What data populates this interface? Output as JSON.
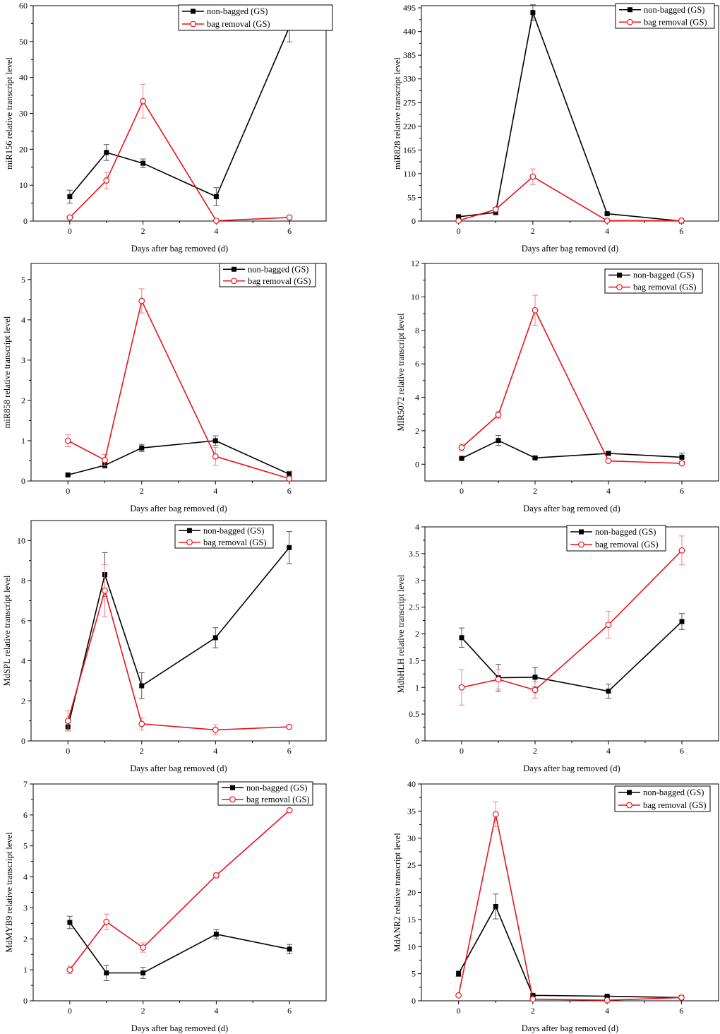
{
  "figure": {
    "xlabel": "Days after bag removed (d)"
  },
  "series_names": {
    "a": "non-bagged (GS)",
    "b": "bag removal (GS)"
  },
  "colors": {
    "a": "#000000",
    "b": "#e8141c",
    "b_error": "#f08080"
  },
  "chart_data": [
    {
      "type": "line",
      "title": "",
      "ylabel": "miR156 relative transcript level",
      "xlabel": "Days after bag removed (d)",
      "x": [
        0,
        1,
        2,
        4,
        6
      ],
      "xlim": [
        -1,
        7
      ],
      "xticks": [
        0,
        2,
        4,
        6
      ],
      "ylim": [
        0,
        60
      ],
      "yticks": [
        0,
        10,
        20,
        30,
        40,
        50,
        60
      ],
      "legend": "top-right",
      "series": [
        {
          "name": "non-bagged (GS)",
          "values": [
            6.8,
            19.1,
            16.1,
            6.8,
            54.1
          ],
          "errors": [
            1.8,
            2.2,
            1.2,
            2.5,
            4.2
          ]
        },
        {
          "name": "bag removal (GS)",
          "values": [
            1.0,
            11.3,
            33.4,
            0.1,
            1.0
          ],
          "errors": [
            0.3,
            2.3,
            4.7,
            0.1,
            0.2
          ]
        }
      ]
    },
    {
      "type": "line",
      "title": "",
      "ylabel": "miR828 relative transcript level",
      "xlabel": "Days after bag removed (d)",
      "x": [
        0,
        1,
        2,
        4,
        6
      ],
      "xlim": [
        -1,
        7
      ],
      "xticks": [
        0,
        2,
        4,
        6
      ],
      "ylim": [
        0,
        500
      ],
      "yticks": [
        0,
        55,
        110,
        165,
        220,
        275,
        330,
        385,
        440,
        495
      ],
      "legend": "top-right",
      "series": [
        {
          "name": "non-bagged (GS)",
          "values": [
            10,
            20,
            484,
            17,
            0
          ],
          "errors": [
            2,
            5,
            18,
            2,
            0.5
          ]
        },
        {
          "name": "bag removal (GS)",
          "values": [
            1,
            27,
            103,
            1,
            1
          ],
          "errors": [
            0.5,
            5,
            18,
            0.5,
            0.5
          ]
        }
      ]
    },
    {
      "type": "line",
      "title": "",
      "ylabel": "miR858 relative transcript level",
      "xlabel": "Days after bag removed (d)",
      "x": [
        0,
        1,
        2,
        4,
        6
      ],
      "xlim": [
        -1,
        7
      ],
      "xticks": [
        0,
        2,
        4,
        6
      ],
      "ylim": [
        0,
        5.4
      ],
      "yticks": [
        0,
        1,
        2,
        3,
        4,
        5
      ],
      "legend": "top-right",
      "series": [
        {
          "name": "non-bagged (GS)",
          "values": [
            0.15,
            0.39,
            0.82,
            1.0,
            0.17
          ],
          "errors": [
            0.03,
            0.07,
            0.09,
            0.12,
            0.07
          ]
        },
        {
          "name": "bag removal (GS)",
          "values": [
            1.0,
            0.52,
            4.47,
            0.61,
            0.06
          ],
          "errors": [
            0.15,
            0.14,
            0.3,
            0.22,
            0.03
          ]
        }
      ]
    },
    {
      "type": "line",
      "title": "",
      "ylabel": "MIR5072 relative transcript level",
      "xlabel": "Days after bag removed (d)",
      "x": [
        0,
        1,
        2,
        4,
        6
      ],
      "xlim": [
        -1,
        7
      ],
      "xticks": [
        0,
        2,
        4,
        6
      ],
      "ylim": [
        -1,
        12
      ],
      "yticks": [
        0,
        2,
        4,
        6,
        8,
        10,
        12
      ],
      "legend": "top-right",
      "series": [
        {
          "name": "non-bagged (GS)",
          "values": [
            0.35,
            1.42,
            0.38,
            0.65,
            0.42
          ],
          "errors": [
            0.05,
            0.3,
            0.05,
            0.1,
            0.25
          ]
        },
        {
          "name": "bag removal (GS)",
          "values": [
            1.0,
            2.95,
            9.2,
            0.2,
            0.05
          ],
          "errors": [
            0.2,
            0.2,
            0.9,
            0.1,
            0.05
          ]
        }
      ]
    },
    {
      "type": "line",
      "title": "",
      "ylabel": "MdSPL relative transcript level",
      "xlabel": "Days after bag removed (d)",
      "x": [
        0,
        1,
        2,
        4,
        6
      ],
      "xlim": [
        -1,
        7
      ],
      "xticks": [
        0,
        2,
        4,
        6
      ],
      "ylim": [
        0,
        11
      ],
      "yticks": [
        0,
        2,
        4,
        6,
        8,
        10
      ],
      "legend": "top-right",
      "series": [
        {
          "name": "non-bagged (GS)",
          "values": [
            0.7,
            8.3,
            2.75,
            5.15,
            9.65
          ],
          "errors": [
            0.2,
            1.1,
            0.65,
            0.5,
            0.8
          ]
        },
        {
          "name": "bag removal (GS)",
          "values": [
            1.0,
            7.5,
            0.85,
            0.55,
            0.7
          ],
          "errors": [
            0.5,
            1.3,
            0.3,
            0.25,
            0.05
          ]
        }
      ]
    },
    {
      "type": "line",
      "title": "",
      "ylabel": "MdbHLH relative transcript level",
      "xlabel": "Days after bag removed (d)",
      "x": [
        0,
        1,
        2,
        4,
        6
      ],
      "xlim": [
        -1,
        7
      ],
      "xticks": [
        0,
        2,
        4,
        6
      ],
      "ylim": [
        0,
        4.0
      ],
      "yticks": [
        0.0,
        0.5,
        1.0,
        1.5,
        2.0,
        2.5,
        3.0,
        3.5,
        4.0
      ],
      "legend": "top-right",
      "series": [
        {
          "name": "non-bagged (GS)",
          "values": [
            1.93,
            1.18,
            1.19,
            0.93,
            2.23
          ],
          "errors": [
            0.18,
            0.25,
            0.18,
            0.13,
            0.15
          ]
        },
        {
          "name": "bag removal (GS)",
          "values": [
            1.0,
            1.15,
            0.95,
            2.17,
            3.56
          ],
          "errors": [
            0.33,
            0.18,
            0.15,
            0.25,
            0.27
          ]
        }
      ]
    },
    {
      "type": "line",
      "title": "",
      "ylabel": "MdMYB9 relative transcript level",
      "xlabel": "Days after bag removed (d)",
      "x": [
        0,
        1,
        2,
        4,
        6
      ],
      "xlim": [
        -1,
        7
      ],
      "xticks": [
        0,
        2,
        4,
        6
      ],
      "ylim": [
        0,
        7
      ],
      "yticks": [
        0,
        1,
        2,
        3,
        4,
        5,
        6,
        7
      ],
      "legend": "top-right",
      "series": [
        {
          "name": "non-bagged (GS)",
          "values": [
            2.53,
            0.9,
            0.9,
            2.15,
            1.67
          ],
          "errors": [
            0.2,
            0.25,
            0.18,
            0.15,
            0.15
          ]
        },
        {
          "name": "bag removal (GS)",
          "values": [
            1.0,
            2.55,
            1.72,
            4.05,
            6.15
          ],
          "errors": [
            0.12,
            0.25,
            0.15,
            0.08,
            0.03
          ]
        }
      ]
    },
    {
      "type": "line",
      "title": "",
      "ylabel": "MdANR2 relative transcript level",
      "xlabel": "Days after bag removed (d)",
      "x": [
        0,
        1,
        2,
        4,
        6
      ],
      "xlim": [
        -1,
        7
      ],
      "xticks": [
        0,
        2,
        4,
        6
      ],
      "ylim": [
        0,
        40
      ],
      "yticks": [
        0,
        5,
        10,
        15,
        20,
        25,
        30,
        35,
        40
      ],
      "legend": "top-right",
      "series": [
        {
          "name": "non-bagged (GS)",
          "values": [
            5.0,
            17.4,
            1.0,
            0.85,
            0.6
          ],
          "errors": [
            0.5,
            2.3,
            0.2,
            0.15,
            0.1
          ]
        },
        {
          "name": "bag removal (GS)",
          "values": [
            1.0,
            34.4,
            0.3,
            0.1,
            0.6
          ],
          "errors": [
            0.2,
            2.3,
            0.1,
            0.05,
            0.1
          ]
        }
      ]
    }
  ]
}
